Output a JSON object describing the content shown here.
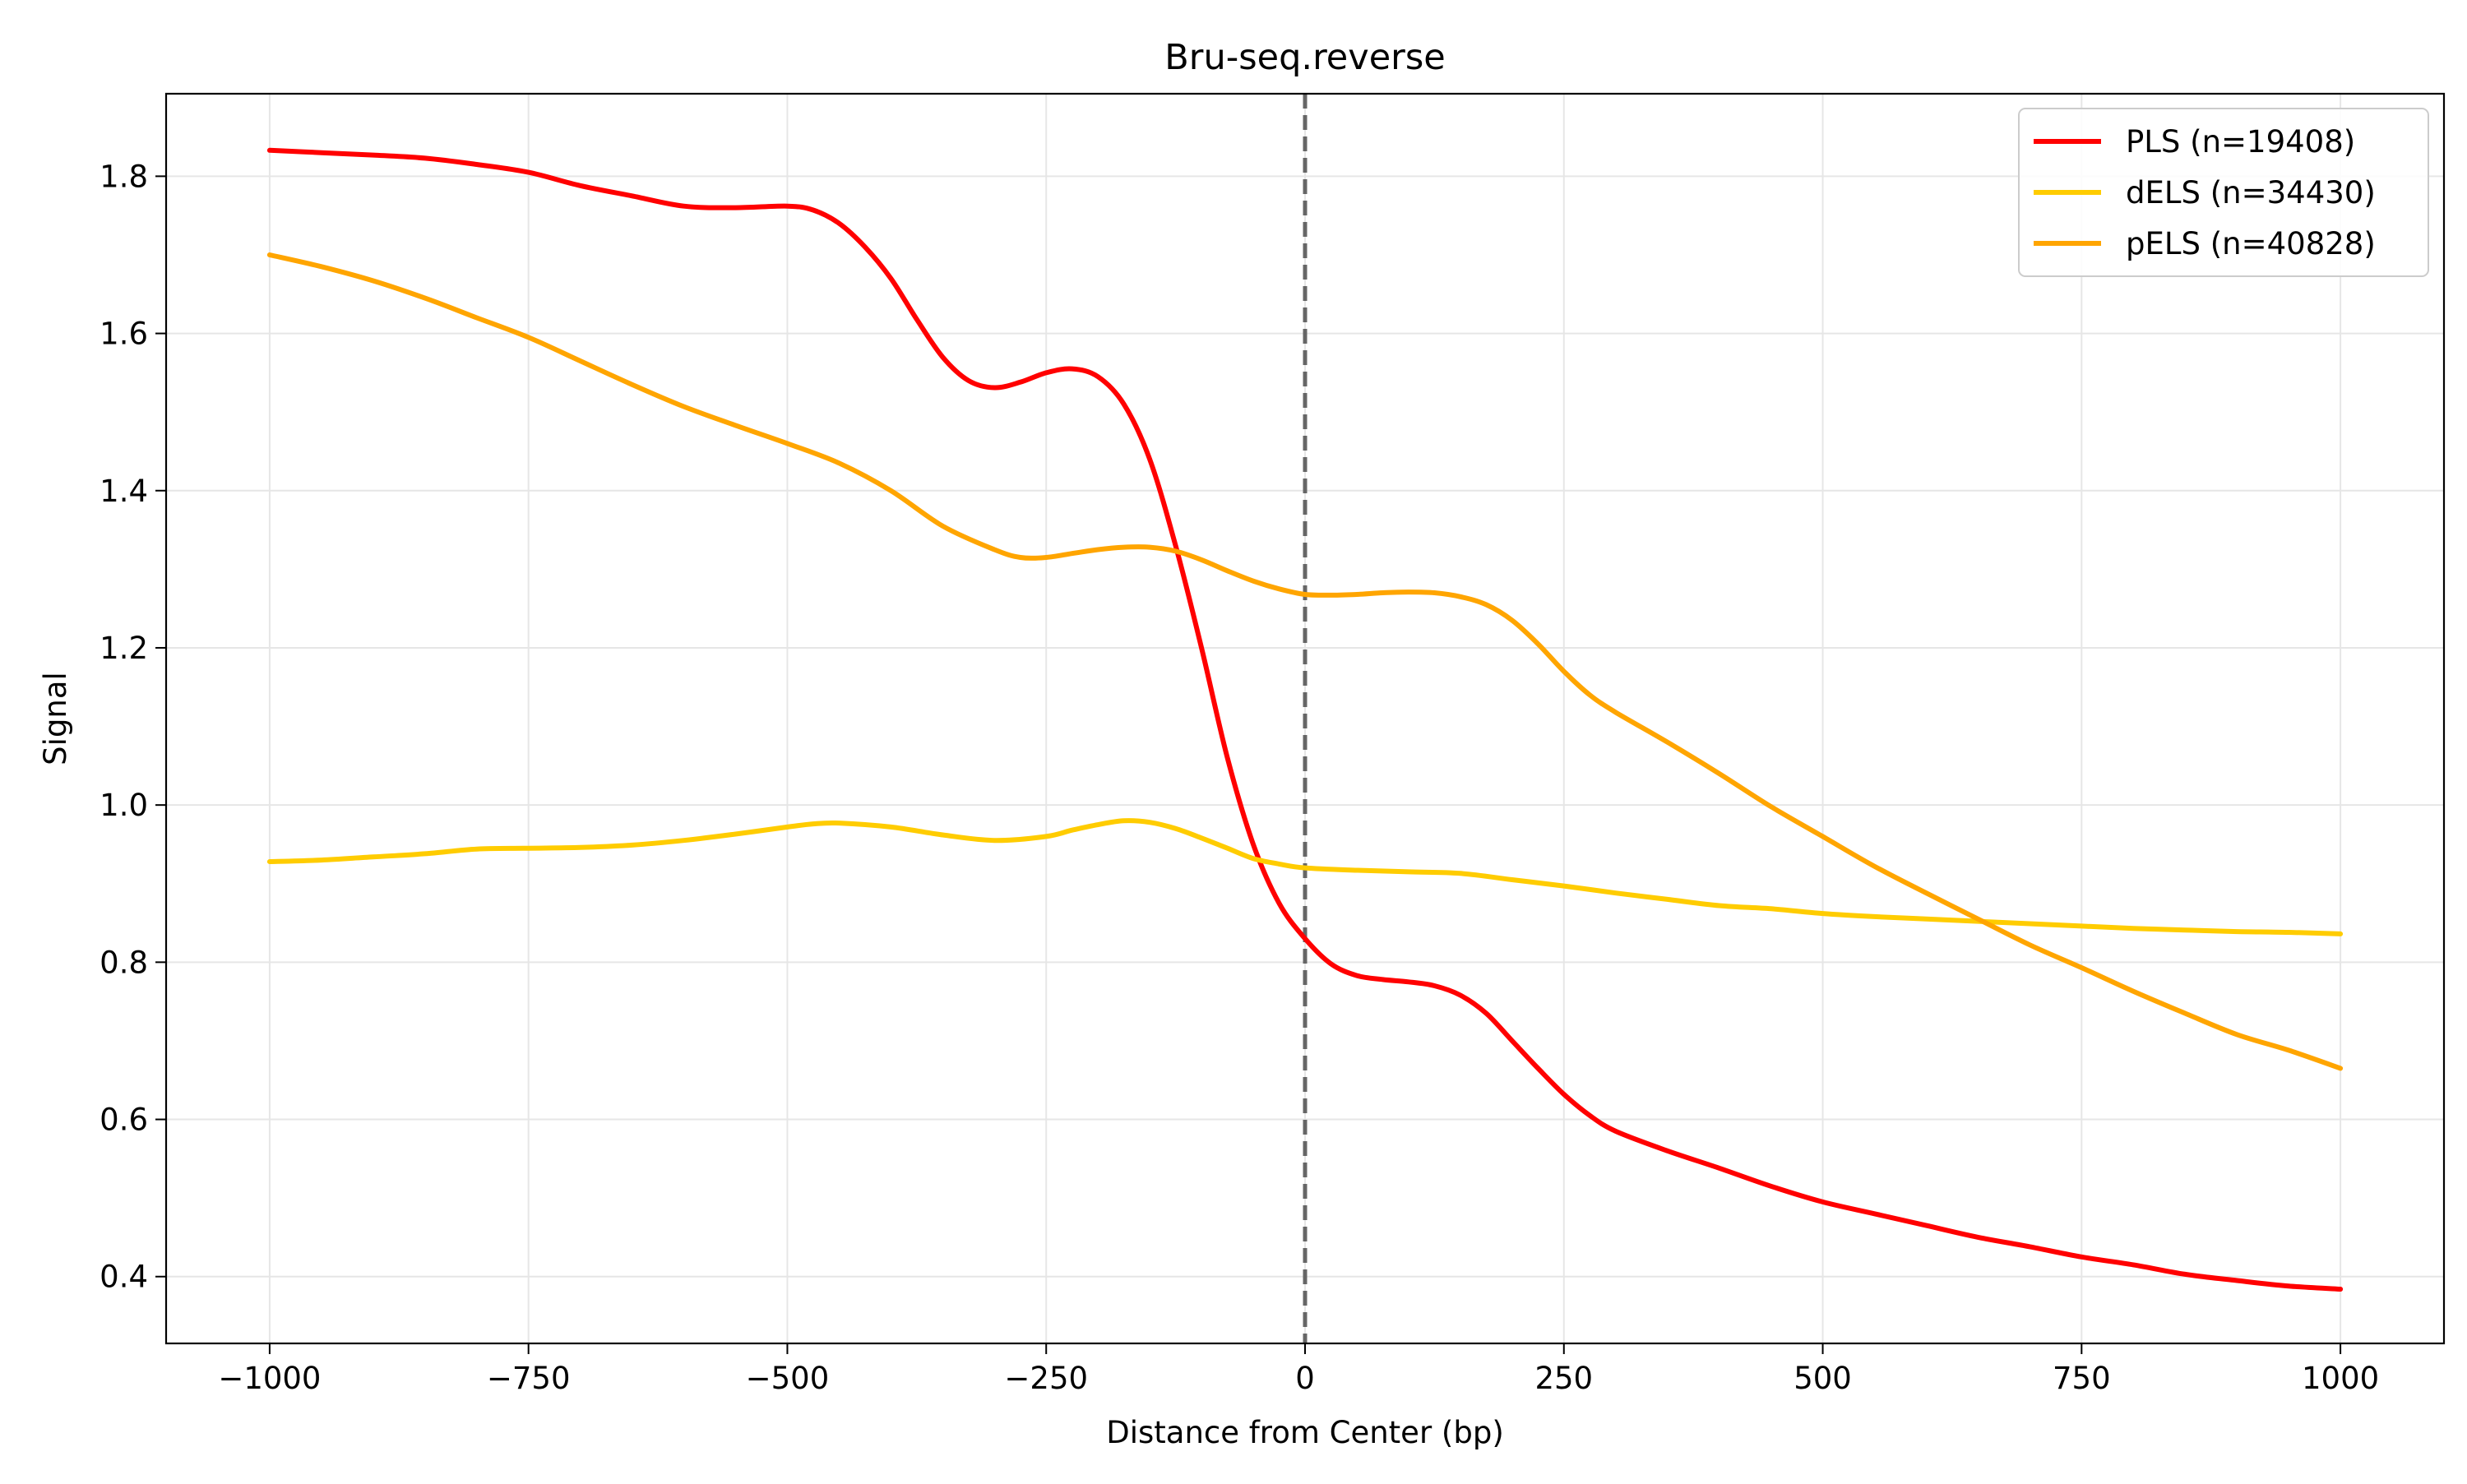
{
  "chart_data": {
    "type": "line",
    "title": "Bru-seq.reverse",
    "xlabel": "Distance from Center (bp)",
    "ylabel": "Signal",
    "xlim": [
      -1100,
      1100
    ],
    "ylim": [
      0.315,
      1.905
    ],
    "x_ticks": [
      -1000,
      -750,
      -500,
      -250,
      0,
      250,
      500,
      750,
      1000
    ],
    "x_tick_labels": [
      "−1000",
      "−750",
      "−500",
      "−250",
      "0",
      "250",
      "500",
      "750",
      "1000"
    ],
    "y_ticks": [
      0.4,
      0.6,
      0.8,
      1.0,
      1.2,
      1.4,
      1.6,
      1.8
    ],
    "y_tick_labels": [
      "0.4",
      "0.6",
      "0.8",
      "1.0",
      "1.2",
      "1.4",
      "1.6",
      "1.8"
    ],
    "grid": true,
    "legend_position": "top-right",
    "center_line": {
      "x": 0,
      "style": "dashed",
      "color": "#666666"
    },
    "series": [
      {
        "name": "PLS (n=19408)",
        "color": "#ff0000",
        "x": [
          -1000,
          -950,
          -900,
          -850,
          -800,
          -750,
          -700,
          -650,
          -600,
          -550,
          -500,
          -475,
          -450,
          -425,
          -400,
          -375,
          -350,
          -325,
          -300,
          -275,
          -250,
          -225,
          -200,
          -175,
          -150,
          -125,
          -100,
          -75,
          -50,
          -25,
          0,
          25,
          50,
          75,
          100,
          125,
          150,
          175,
          200,
          225,
          250,
          275,
          300,
          350,
          400,
          450,
          500,
          550,
          600,
          650,
          700,
          750,
          800,
          850,
          900,
          950,
          1000
        ],
        "values": [
          1.833,
          1.83,
          1.827,
          1.823,
          1.815,
          1.805,
          1.788,
          1.775,
          1.762,
          1.76,
          1.762,
          1.757,
          1.74,
          1.71,
          1.67,
          1.618,
          1.57,
          1.54,
          1.531,
          1.538,
          1.55,
          1.555,
          1.545,
          1.51,
          1.44,
          1.33,
          1.2,
          1.06,
          0.95,
          0.875,
          0.83,
          0.798,
          0.783,
          0.778,
          0.775,
          0.77,
          0.758,
          0.735,
          0.7,
          0.665,
          0.632,
          0.605,
          0.585,
          0.56,
          0.538,
          0.515,
          0.495,
          0.48,
          0.465,
          0.45,
          0.438,
          0.425,
          0.415,
          0.403,
          0.395,
          0.388,
          0.384
        ]
      },
      {
        "name": "dELS (n=34430)",
        "color": "#ffcc00",
        "x": [
          -1000,
          -950,
          -900,
          -850,
          -800,
          -750,
          -700,
          -650,
          -600,
          -550,
          -500,
          -475,
          -450,
          -400,
          -350,
          -300,
          -250,
          -225,
          -200,
          -175,
          -150,
          -125,
          -100,
          -75,
          -50,
          -25,
          0,
          50,
          100,
          150,
          200,
          250,
          300,
          350,
          400,
          450,
          500,
          550,
          600,
          650,
          700,
          750,
          800,
          850,
          900,
          950,
          1000
        ],
        "values": [
          0.928,
          0.93,
          0.934,
          0.938,
          0.944,
          0.945,
          0.946,
          0.949,
          0.955,
          0.963,
          0.972,
          0.976,
          0.977,
          0.972,
          0.962,
          0.955,
          0.96,
          0.968,
          0.975,
          0.98,
          0.978,
          0.97,
          0.958,
          0.945,
          0.932,
          0.925,
          0.92,
          0.917,
          0.915,
          0.913,
          0.905,
          0.897,
          0.888,
          0.88,
          0.872,
          0.868,
          0.862,
          0.858,
          0.855,
          0.852,
          0.849,
          0.846,
          0.843,
          0.841,
          0.839,
          0.838,
          0.836
        ]
      },
      {
        "name": "pELS (n=40828)",
        "color": "#ffa500",
        "x": [
          -1000,
          -950,
          -900,
          -850,
          -800,
          -750,
          -700,
          -650,
          -600,
          -550,
          -500,
          -450,
          -400,
          -350,
          -300,
          -275,
          -250,
          -225,
          -200,
          -175,
          -150,
          -125,
          -100,
          -75,
          -50,
          -25,
          0,
          25,
          50,
          75,
          100,
          125,
          150,
          175,
          200,
          225,
          250,
          275,
          300,
          350,
          400,
          450,
          500,
          550,
          600,
          650,
          700,
          750,
          800,
          850,
          900,
          950,
          1000
        ],
        "values": [
          1.7,
          1.685,
          1.667,
          1.645,
          1.62,
          1.595,
          1.565,
          1.535,
          1.507,
          1.483,
          1.46,
          1.435,
          1.4,
          1.355,
          1.325,
          1.315,
          1.315,
          1.32,
          1.325,
          1.328,
          1.328,
          1.323,
          1.312,
          1.298,
          1.285,
          1.275,
          1.268,
          1.267,
          1.268,
          1.27,
          1.271,
          1.27,
          1.265,
          1.255,
          1.235,
          1.205,
          1.17,
          1.14,
          1.118,
          1.08,
          1.04,
          0.998,
          0.96,
          0.922,
          0.888,
          0.855,
          0.822,
          0.793,
          0.763,
          0.735,
          0.708,
          0.688,
          0.665
        ]
      }
    ]
  }
}
